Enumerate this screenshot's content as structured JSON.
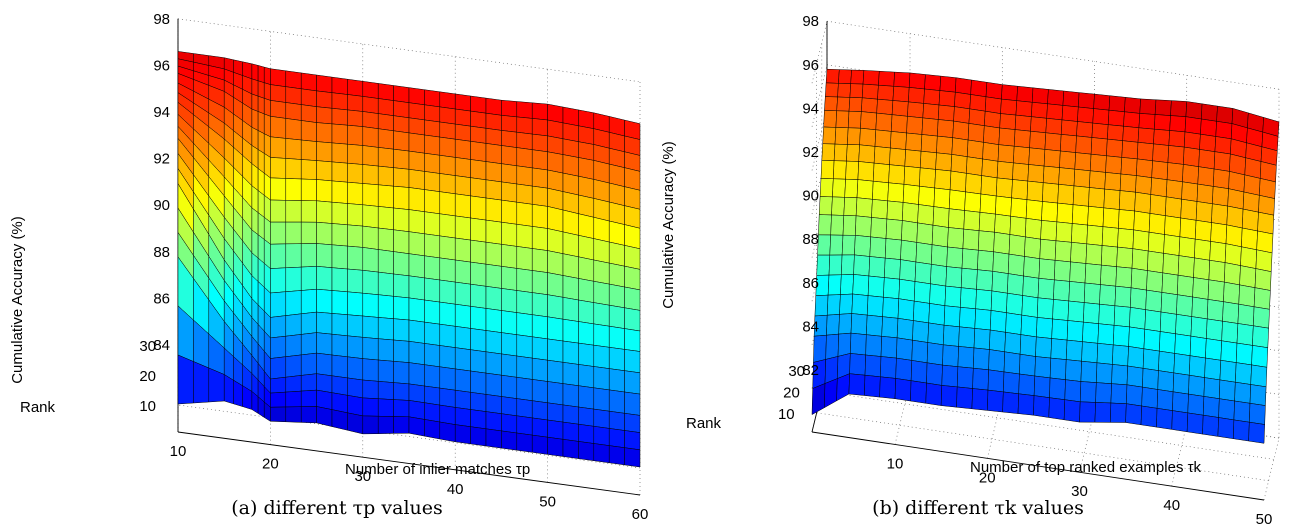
{
  "chart_data": [
    {
      "type": "surface",
      "caption": "(a) different τp values",
      "zlabel": "Cumulative Accuracy (%)",
      "xlabel": "Number of inlier matches τp",
      "ylabel": "Rank",
      "zlim": [
        84,
        98
      ],
      "z_ticks": [
        "84",
        "86",
        "88",
        "90",
        "92",
        "94",
        "96",
        "98"
      ],
      "x_ticks": [
        "10",
        "20",
        "30",
        "40",
        "50",
        "60"
      ],
      "y_ticks": [
        "10",
        "20",
        "30"
      ],
      "xlim": [
        10,
        60
      ],
      "ylim": [
        1,
        30
      ],
      "grid": true,
      "colormap": "jet",
      "x_samples": [
        10,
        15,
        18,
        20,
        25,
        30,
        35,
        40,
        45,
        50,
        55,
        60
      ],
      "ranks": [
        1,
        5,
        10,
        15,
        20,
        25,
        30
      ],
      "z": [
        [
          85.2,
          85.6,
          85.4,
          85.0,
          85.2,
          85.0,
          85.3,
          85.2,
          85.2,
          85.2,
          85.2,
          85.2
        ],
        [
          91.0,
          88.5,
          87.2,
          86.3,
          86.8,
          86.8,
          86.9,
          86.9,
          86.9,
          86.9,
          86.9,
          86.9
        ],
        [
          93.5,
          90.5,
          89.0,
          88.3,
          88.8,
          88.9,
          89.0,
          89.0,
          89.0,
          89.0,
          89.0,
          89.0
        ],
        [
          94.8,
          92.6,
          91.3,
          90.8,
          91.1,
          91.2,
          91.2,
          91.2,
          91.2,
          91.2,
          91.1,
          91.0
        ],
        [
          95.7,
          94.4,
          93.5,
          93.0,
          93.2,
          93.3,
          93.4,
          93.4,
          93.4,
          93.4,
          93.2,
          93.0
        ],
        [
          96.3,
          95.8,
          95.2,
          95.0,
          95.0,
          95.1,
          95.1,
          95.1,
          95.1,
          95.1,
          95.0,
          94.8
        ],
        [
          96.6,
          96.6,
          96.5,
          96.4,
          96.4,
          96.4,
          96.4,
          96.4,
          96.4,
          96.5,
          96.4,
          96.2
        ]
      ]
    },
    {
      "type": "surface",
      "caption": "(b) different τk values",
      "zlabel": "Cumulative Accuracy (%)",
      "xlabel": "Number of top ranked examples τk",
      "ylabel": "Rank",
      "zlim": [
        82,
        98
      ],
      "z_ticks": [
        "82",
        "84",
        "86",
        "88",
        "90",
        "92",
        "94",
        "96",
        "98"
      ],
      "x_ticks": [
        "10",
        "20",
        "30",
        "40",
        "50"
      ],
      "y_ticks": [
        "10",
        "20",
        "30"
      ],
      "xlim": [
        1,
        50
      ],
      "ylim": [
        1,
        30
      ],
      "grid": true,
      "colormap": "jet",
      "x_samples": [
        1,
        5,
        10,
        15,
        20,
        25,
        30,
        35,
        40,
        45,
        50
      ],
      "ranks": [
        1,
        5,
        10,
        15,
        20,
        25,
        30
      ],
      "z": [
        [
          82.8,
          84.0,
          84.1,
          84.1,
          84.2,
          84.3,
          84.3,
          84.6,
          84.6,
          84.6,
          84.6
        ],
        [
          86.0,
          86.4,
          86.5,
          86.5,
          86.6,
          86.6,
          86.7,
          86.8,
          86.8,
          86.8,
          86.8
        ],
        [
          88.3,
          88.6,
          88.7,
          88.7,
          88.8,
          88.8,
          88.9,
          89.0,
          89.0,
          89.0,
          89.0
        ],
        [
          90.6,
          90.8,
          90.9,
          90.9,
          91.0,
          91.0,
          91.1,
          91.2,
          91.2,
          91.2,
          91.1
        ],
        [
          92.6,
          92.8,
          92.9,
          93.0,
          93.0,
          93.1,
          93.2,
          93.3,
          93.3,
          93.3,
          93.2
        ],
        [
          94.4,
          94.6,
          94.7,
          94.8,
          94.8,
          94.9,
          95.0,
          95.1,
          95.2,
          95.2,
          95.0
        ],
        [
          95.8,
          96.0,
          96.2,
          96.3,
          96.3,
          96.4,
          96.5,
          96.6,
          96.8,
          96.8,
          96.5
        ]
      ]
    }
  ]
}
